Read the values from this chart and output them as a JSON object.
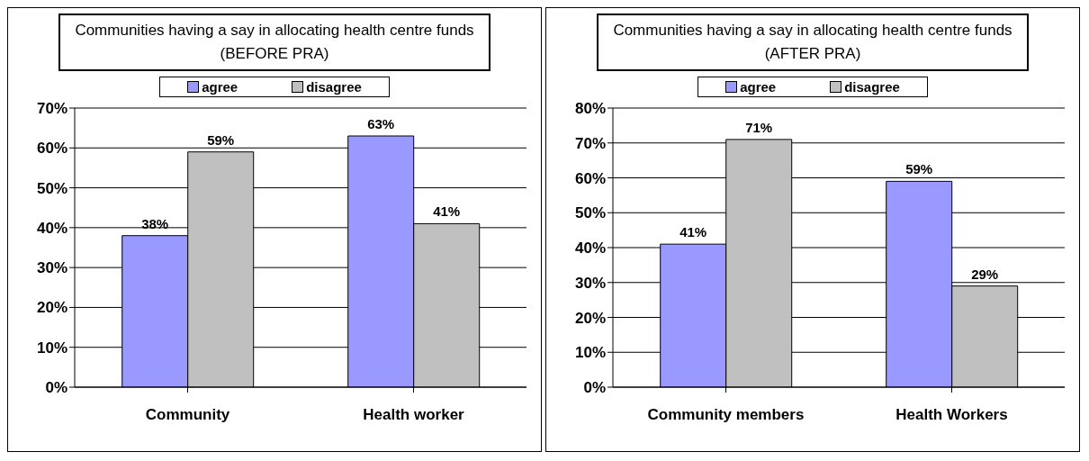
{
  "chart_data": [
    {
      "type": "bar",
      "title": "Communities having a say in allocating health centre funds (BEFORE PRA)",
      "categories": [
        "Community",
        "Health worker"
      ],
      "series": [
        {
          "name": "agree",
          "color": "#9999ff",
          "values": [
            38,
            63
          ],
          "value_labels": [
            "38%",
            "63%"
          ]
        },
        {
          "name": "disagree",
          "color": "#c0c0c0",
          "values": [
            59,
            41
          ],
          "value_labels": [
            "59%",
            "41%"
          ]
        }
      ],
      "ylim": [
        0,
        70
      ],
      "yticks": [
        {
          "value": 0,
          "label": "0%"
        },
        {
          "value": 10,
          "label": "10%"
        },
        {
          "value": 20,
          "label": "20%"
        },
        {
          "value": 30,
          "label": "30%"
        },
        {
          "value": 40,
          "label": "40%"
        },
        {
          "value": 50,
          "label": "50%"
        },
        {
          "value": 60,
          "label": "60%"
        },
        {
          "value": 70,
          "label": "70%"
        }
      ],
      "grid": "y",
      "legend": "top"
    },
    {
      "type": "bar",
      "title": "Communities having a say in allocating health centre funds (AFTER PRA)",
      "categories": [
        "Community members",
        "Health Workers"
      ],
      "series": [
        {
          "name": "agree",
          "color": "#9999ff",
          "values": [
            41,
            59
          ],
          "value_labels": [
            "41%",
            "59%"
          ]
        },
        {
          "name": "disagree",
          "color": "#c0c0c0",
          "values": [
            71,
            29
          ],
          "value_labels": [
            "71%",
            "29%"
          ]
        }
      ],
      "ylim": [
        0,
        80
      ],
      "yticks": [
        {
          "value": 0,
          "label": "0%"
        },
        {
          "value": 10,
          "label": "10%"
        },
        {
          "value": 20,
          "label": "20%"
        },
        {
          "value": 30,
          "label": "30%"
        },
        {
          "value": 40,
          "label": "40%"
        },
        {
          "value": 50,
          "label": "50%"
        },
        {
          "value": 60,
          "label": "60%"
        },
        {
          "value": 70,
          "label": "70%"
        },
        {
          "value": 80,
          "label": "80%"
        }
      ],
      "grid": "y",
      "legend": "top"
    }
  ]
}
